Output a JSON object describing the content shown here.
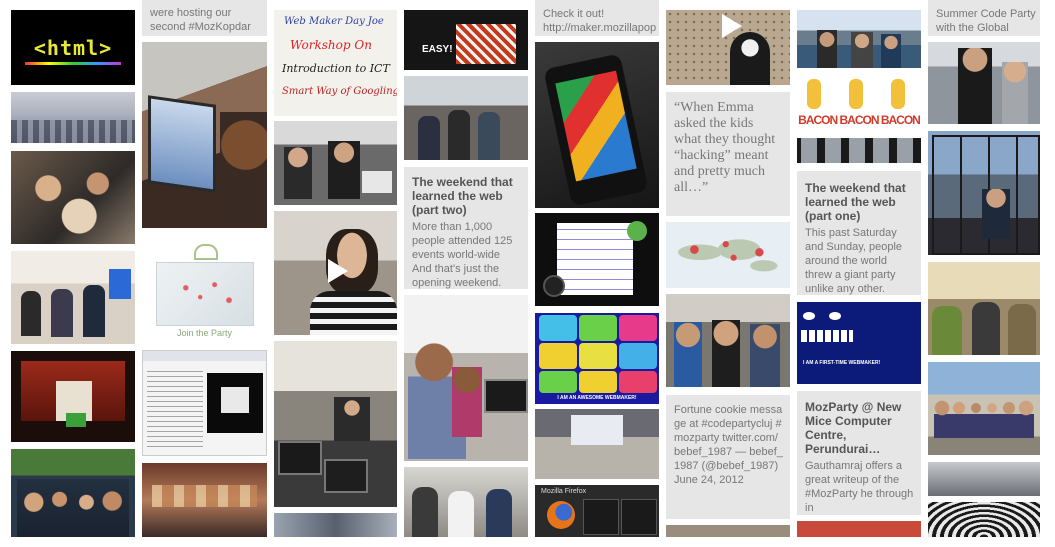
{
  "tiles": {
    "html_logo": "<html>",
    "moz_kopdar": "were hosting our second #MozKopdar",
    "workshop_sign": {
      "line1": "Web Maker Day Joe",
      "line2": "Workshop On",
      "line3": "Introduction to ICT",
      "line4": "Smart Way of Googling"
    },
    "easy_sign": "EASY!",
    "check_it_out": {
      "line1": "Check it out!",
      "line2": "http://maker.mozillapop"
    },
    "summer_code": {
      "line1": "Summer Code Party",
      "line2": "with the Global"
    },
    "join_party": "Join the Party",
    "weekend_two": {
      "title": "The weekend that learned the web (part two)",
      "body": "More than 1,000 people attended 125 events world-wide And that's just the opening weekend."
    },
    "emma_quote": "“When Emma asked the kids what they thought “hacking” meant and pretty much all…”",
    "weekend_one": {
      "title": "The weekend that learned the web (part one)",
      "body": "This past Saturday and Sunday, people around the world threw a giant party unlike any other."
    },
    "bacon": "BACON BACON BACON",
    "awesome_webmaker": "I AM AN AWESOME WEBMAKER!",
    "first_time_webmaker": "I AM A FIRST-TIME WEBMAKER!",
    "fortune": {
      "body": "Fortune cookie message at #codepartycluj #mozparty twitter.com/bebef_1987 — bebef_1987 (@bebef_1987) June 24, 2012"
    },
    "mozparty_perundurai": {
      "title": "MozParty @ New Mice Computer Centre, Perundurai…",
      "body": "Gauthamraj offers a great writeup of the #MozParty he through in"
    },
    "mozilla_firefox": "Mozilla Firefox"
  },
  "colors": {
    "tile_text_bg": "#e6e6e6",
    "title": "#555555",
    "body": "#777777"
  }
}
